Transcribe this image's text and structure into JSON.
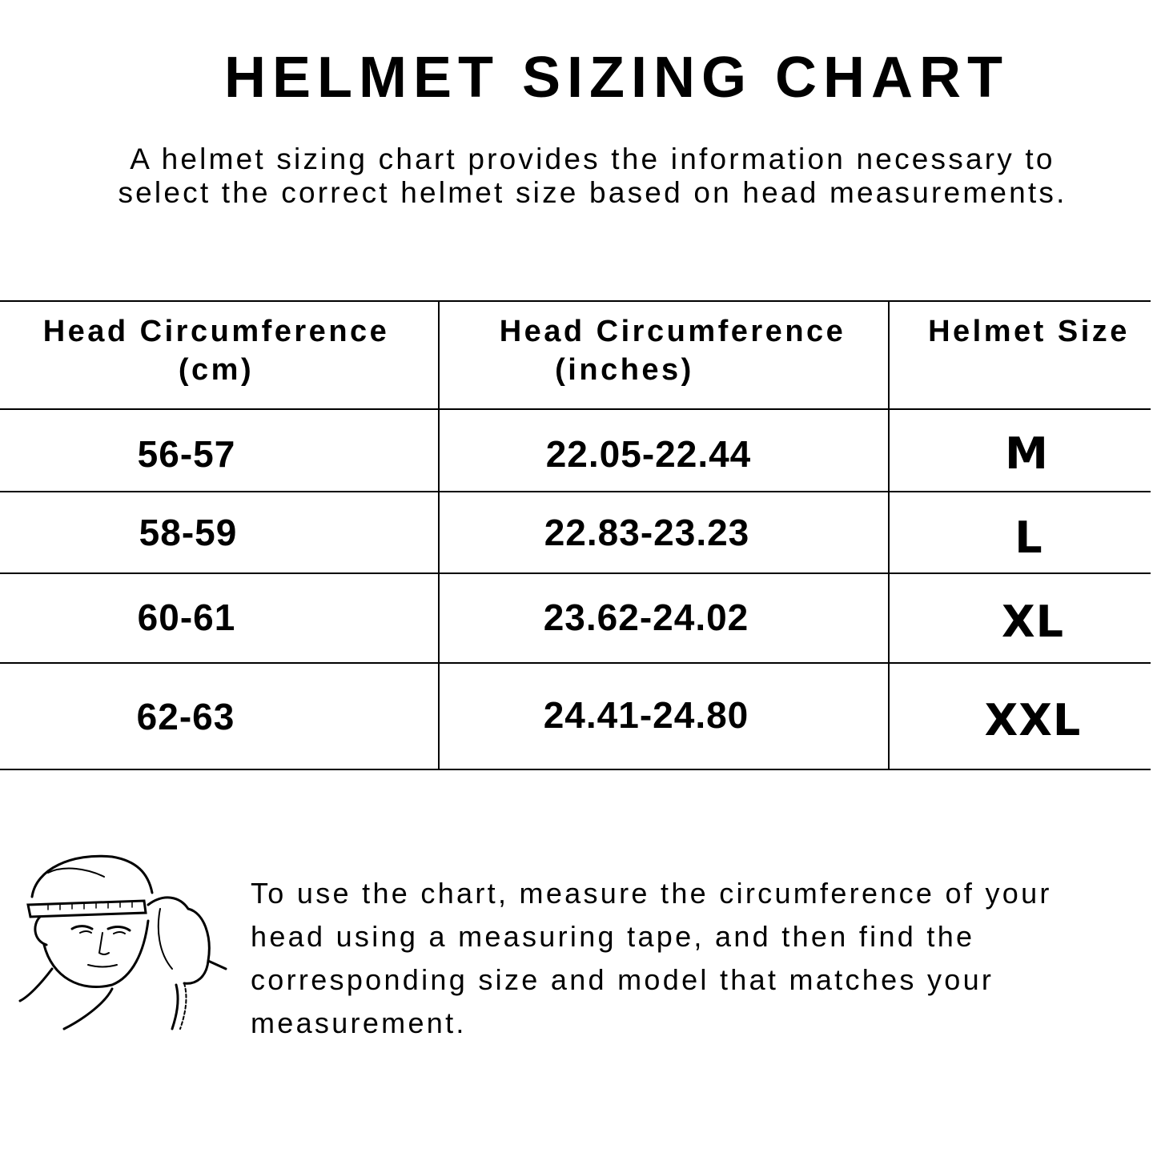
{
  "title": "HELMET SIZING CHART",
  "intro": {
    "line1": "A helmet sizing chart provides the information necessary to",
    "line2": "select the correct helmet size based on head measurements."
  },
  "table": {
    "headers": [
      {
        "line1": "Head Circumference",
        "line2": "(cm)"
      },
      {
        "line1": "Head Circumference",
        "line2": "(inches)"
      },
      {
        "line1": "Helmet Size",
        "line2": ""
      }
    ],
    "rows": [
      {
        "cm": "56-57",
        "inches": "22.05-22.44",
        "size": "M"
      },
      {
        "cm": "58-59",
        "inches": "22.83-23.23",
        "size": "L"
      },
      {
        "cm": "60-61",
        "inches": "23.62-24.02",
        "size": "XL"
      },
      {
        "cm": "62-63",
        "inches": "24.41-24.80",
        "size": "XXL"
      }
    ]
  },
  "instructions": {
    "lines": [
      "To use the chart, measure the circumference of your",
      "head using a measuring tape, and then find the",
      "corresponding size and model that matches your",
      "measurement."
    ]
  },
  "illustration": {
    "icon": "man-measuring-head-illustration"
  }
}
